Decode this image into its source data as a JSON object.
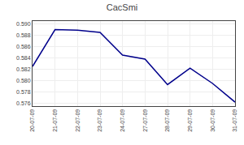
{
  "chart_data": {
    "type": "line",
    "title": "CacSmi",
    "categories": [
      "20-07-09",
      "21-07-09",
      "22-07-09",
      "23-07-09",
      "24-07-09",
      "27-07-09",
      "28-07-09",
      "29-07-09",
      "30-07-09",
      "31-07-09"
    ],
    "values": [
      0.5825,
      0.589,
      0.5889,
      0.5885,
      0.5845,
      0.5838,
      0.5793,
      0.5822,
      0.5795,
      0.5762
    ],
    "color": "#00008b",
    "ylim": [
      0.5755,
      0.5905
    ],
    "yticks": [
      0.576,
      0.578,
      {
        "value": 0.58,
        "label": "0.580"
      },
      0.582,
      0.584,
      0.586,
      0.588,
      {
        "value": 0.59,
        "label": "0.590"
      }
    ],
    "grid": true
  }
}
